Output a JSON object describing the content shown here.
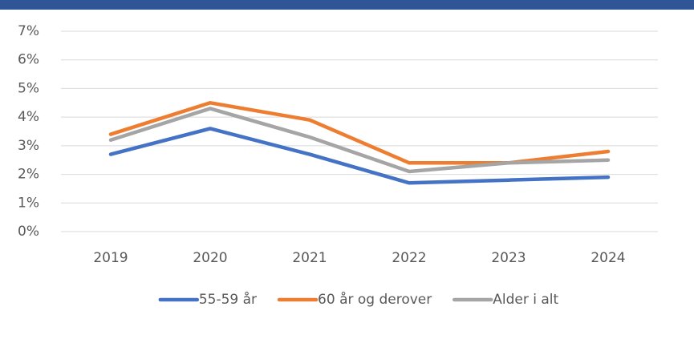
{
  "chart_data": {
    "type": "line",
    "categories": [
      "2019",
      "2020",
      "2021",
      "2022",
      "2023",
      "2024"
    ],
    "series": [
      {
        "name": "55-59 år",
        "color": "#4472c4",
        "values": [
          2.7,
          3.6,
          2.7,
          1.7,
          1.8,
          1.9
        ]
      },
      {
        "name": "60 år og derover",
        "color": "#ed7d31",
        "values": [
          3.4,
          4.5,
          3.9,
          2.4,
          2.4,
          2.8
        ]
      },
      {
        "name": "Alder i alt",
        "color": "#a5a5a5",
        "values": [
          3.2,
          4.3,
          3.3,
          2.1,
          2.4,
          2.5
        ]
      }
    ],
    "ylim": [
      0,
      7
    ],
    "yticks": [
      {
        "value": 0,
        "label": "0%"
      },
      {
        "value": 1,
        "label": "1%"
      },
      {
        "value": 2,
        "label": "2%"
      },
      {
        "value": 3,
        "label": "3%"
      },
      {
        "value": 4,
        "label": "4%"
      },
      {
        "value": 5,
        "label": "5%"
      },
      {
        "value": 6,
        "label": "6%"
      },
      {
        "value": 7,
        "label": "7%"
      }
    ],
    "grid": true,
    "legend": "bottom"
  }
}
